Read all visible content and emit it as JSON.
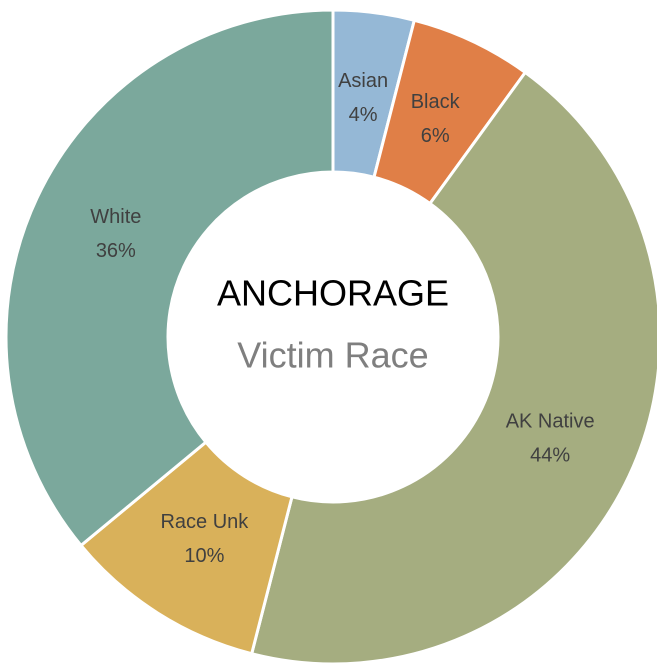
{
  "chart_data": {
    "type": "donut",
    "title": "ANCHORAGE",
    "subtitle": "Victim Race",
    "categories": [
      "Asian",
      "Black",
      "AK Native",
      "Race Unk",
      "White"
    ],
    "values": [
      4,
      6,
      44,
      10,
      36
    ],
    "value_labels": [
      "4%",
      "6%",
      "44%",
      "10%",
      "36%"
    ],
    "colors": [
      "#95b8d6",
      "#e07f47",
      "#a5ad80",
      "#d9b15a",
      "#7ba89c"
    ]
  }
}
